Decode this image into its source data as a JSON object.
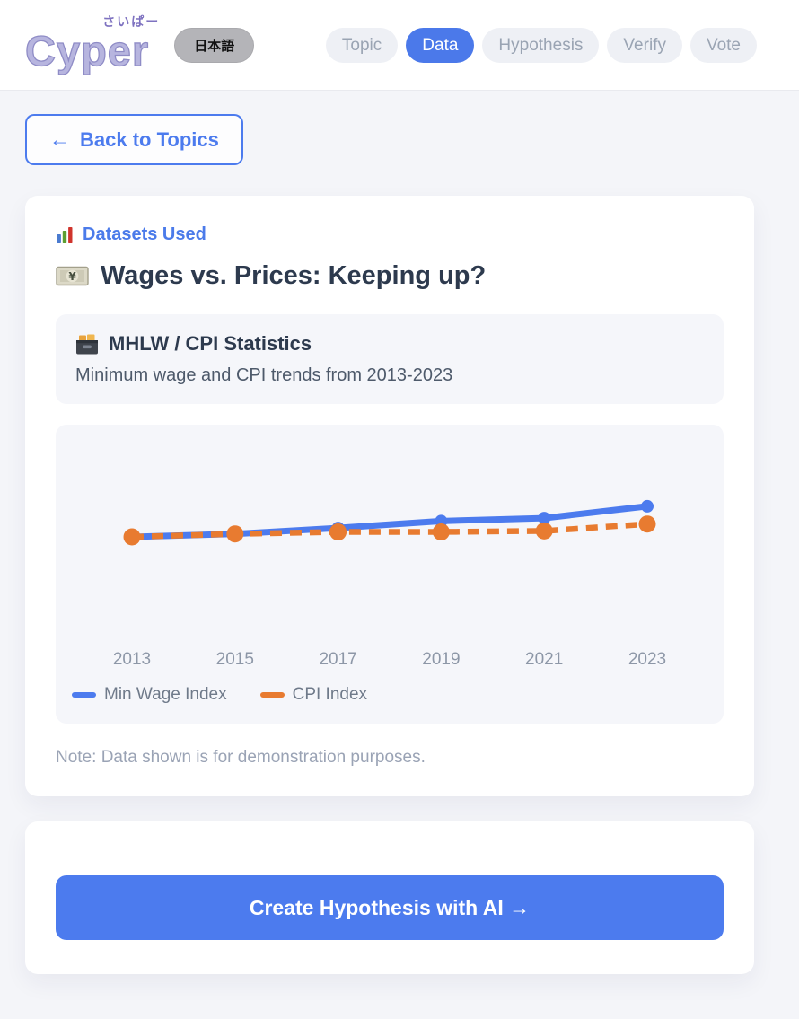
{
  "colors": {
    "accent": "#4c7bee",
    "nav_pill_bg": "#eef0f5",
    "page_bg": "#f4f5f9",
    "tile_bg": "#f5f6fa"
  },
  "header": {
    "logo": {
      "text": "Cyper",
      "ruby": "さいぱー"
    },
    "language_button": "日本語",
    "nav": [
      {
        "label": "Topic",
        "active": false
      },
      {
        "label": "Data",
        "active": true
      },
      {
        "label": "Hypothesis",
        "active": false
      },
      {
        "label": "Verify",
        "active": false
      },
      {
        "label": "Vote",
        "active": false
      }
    ]
  },
  "back_button": {
    "arrow": "←",
    "label": "Back to Topics"
  },
  "dataset_card": {
    "section_icon": "bar-chart-emoji",
    "section_label": "Datasets Used",
    "title_icon": "yen-banknote-emoji",
    "title": "Wages vs. Prices: Keeping up?",
    "dataset": {
      "icon": "card-file-box-emoji",
      "name": "MHLW / CPI Statistics",
      "description": "Minimum wage and CPI trends from 2013-2023"
    },
    "note": "Note: Data shown is for demonstration purposes."
  },
  "chart_data": {
    "type": "line",
    "categories": [
      "2013",
      "2015",
      "2017",
      "2019",
      "2021",
      "2023"
    ],
    "series": [
      {
        "name": "Min Wage Index",
        "color": "#4c7bee",
        "style": "solid",
        "values": [
          100,
          103,
          109,
          116,
          119,
          131
        ]
      },
      {
        "name": "CPI Index",
        "color": "#e87b30",
        "style": "dashed",
        "values": [
          100,
          103,
          105,
          105,
          106,
          113
        ]
      }
    ],
    "title": "",
    "xlabel": "",
    "ylabel": "",
    "ylim": [
      95,
      140
    ],
    "grid": false,
    "legend_position": "bottom-left"
  },
  "cta_card": {
    "button_label": "Create Hypothesis with AI →"
  }
}
